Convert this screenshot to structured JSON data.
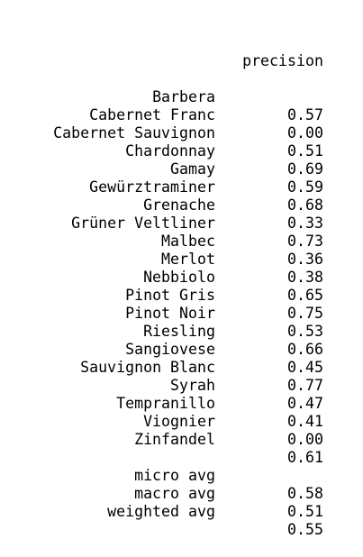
{
  "report": {
    "column_header": "precision",
    "classes": [
      {
        "label": "Barbera",
        "precision": "0.57"
      },
      {
        "label": "Cabernet Franc",
        "precision": "0.00"
      },
      {
        "label": "Cabernet Sauvignon",
        "precision": "0.51"
      },
      {
        "label": "Chardonnay",
        "precision": "0.69"
      },
      {
        "label": "Gamay",
        "precision": "0.59"
      },
      {
        "label": "Gewürztraminer",
        "precision": "0.68"
      },
      {
        "label": "Grenache",
        "precision": "0.33"
      },
      {
        "label": "Grüner Veltliner",
        "precision": "0.73"
      },
      {
        "label": "Malbec",
        "precision": "0.36"
      },
      {
        "label": "Merlot",
        "precision": "0.38"
      },
      {
        "label": "Nebbiolo",
        "precision": "0.65"
      },
      {
        "label": "Pinot Gris",
        "precision": "0.75"
      },
      {
        "label": "Pinot Noir",
        "precision": "0.53"
      },
      {
        "label": "Riesling",
        "precision": "0.66"
      },
      {
        "label": "Sangiovese",
        "precision": "0.45"
      },
      {
        "label": "Sauvignon Blanc",
        "precision": "0.77"
      },
      {
        "label": "Syrah",
        "precision": "0.47"
      },
      {
        "label": "Tempranillo",
        "precision": "0.41"
      },
      {
        "label": "Viognier",
        "precision": "0.00"
      },
      {
        "label": "Zinfandel",
        "precision": "0.61"
      }
    ],
    "averages": [
      {
        "label": "micro avg",
        "precision": "0.58"
      },
      {
        "label": "macro avg",
        "precision": "0.51"
      },
      {
        "label": "weighted avg",
        "precision": "0.55"
      }
    ]
  }
}
